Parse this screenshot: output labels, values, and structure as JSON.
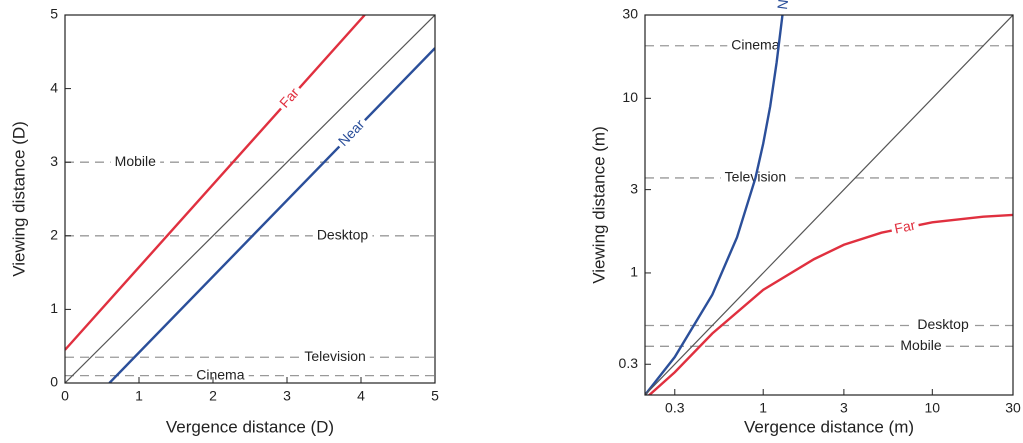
{
  "chart_data": [
    {
      "type": "line",
      "x_label": "Vergence distance (D)",
      "y_label": "Viewing distance (D)",
      "xlim": [
        0,
        5
      ],
      "ylim": [
        0,
        5
      ],
      "xticks": [
        0,
        1,
        2,
        3,
        4,
        5
      ],
      "yticks": [
        0,
        1,
        2,
        3,
        4,
        5
      ],
      "series": [
        {
          "name": "Far",
          "color": "#e0303f",
          "x": [
            0,
            4.05
          ],
          "values": [
            0.45,
            5
          ]
        },
        {
          "name": "Near",
          "color": "#2b4f9a",
          "x": [
            0.6,
            5
          ],
          "values": [
            0,
            4.55
          ]
        },
        {
          "color": "#555555",
          "x": [
            0,
            5
          ],
          "values": [
            0,
            5
          ]
        }
      ],
      "reference_lines": [
        {
          "label": "Mobile",
          "value": 3
        },
        {
          "label": "Desktop",
          "value": 2
        },
        {
          "label": "Television",
          "value": 0.35
        },
        {
          "label": "Cinema",
          "value": 0.1
        }
      ]
    },
    {
      "type": "line",
      "x_label": "Vergence distance (m)",
      "y_label": "Viewing distance (m)",
      "xscale": "log",
      "yscale": "log",
      "xlim": [
        0.2,
        30
      ],
      "ylim": [
        0.2,
        30
      ],
      "xticks": [
        0.3,
        1,
        3,
        10,
        30
      ],
      "yticks": [
        0.3,
        1,
        3,
        10,
        30
      ],
      "series": [
        {
          "name": "Near",
          "color": "#2b4f9a",
          "x": [
            0.2,
            0.3,
            0.5,
            0.7,
            0.9,
            1,
            1.1,
            1.2,
            1.3
          ],
          "values": [
            0.2,
            0.33,
            0.75,
            1.6,
            3.5,
            5.5,
            9,
            16,
            30
          ]
        },
        {
          "name": "Far",
          "color": "#e0303f",
          "x": [
            0.2,
            0.3,
            0.5,
            1,
            2,
            3,
            5,
            10,
            20,
            30
          ],
          "values": [
            0.19,
            0.27,
            0.45,
            0.8,
            1.2,
            1.45,
            1.7,
            1.95,
            2.1,
            2.15
          ]
        },
        {
          "color": "#555555",
          "x": [
            0.2,
            30
          ],
          "values": [
            0.2,
            30
          ]
        }
      ],
      "reference_lines": [
        {
          "label": "Cinema",
          "value": 20
        },
        {
          "label": "Television",
          "value": 3.5
        },
        {
          "label": "Desktop",
          "value": 0.5
        },
        {
          "label": "Mobile",
          "value": 0.38
        }
      ]
    }
  ]
}
